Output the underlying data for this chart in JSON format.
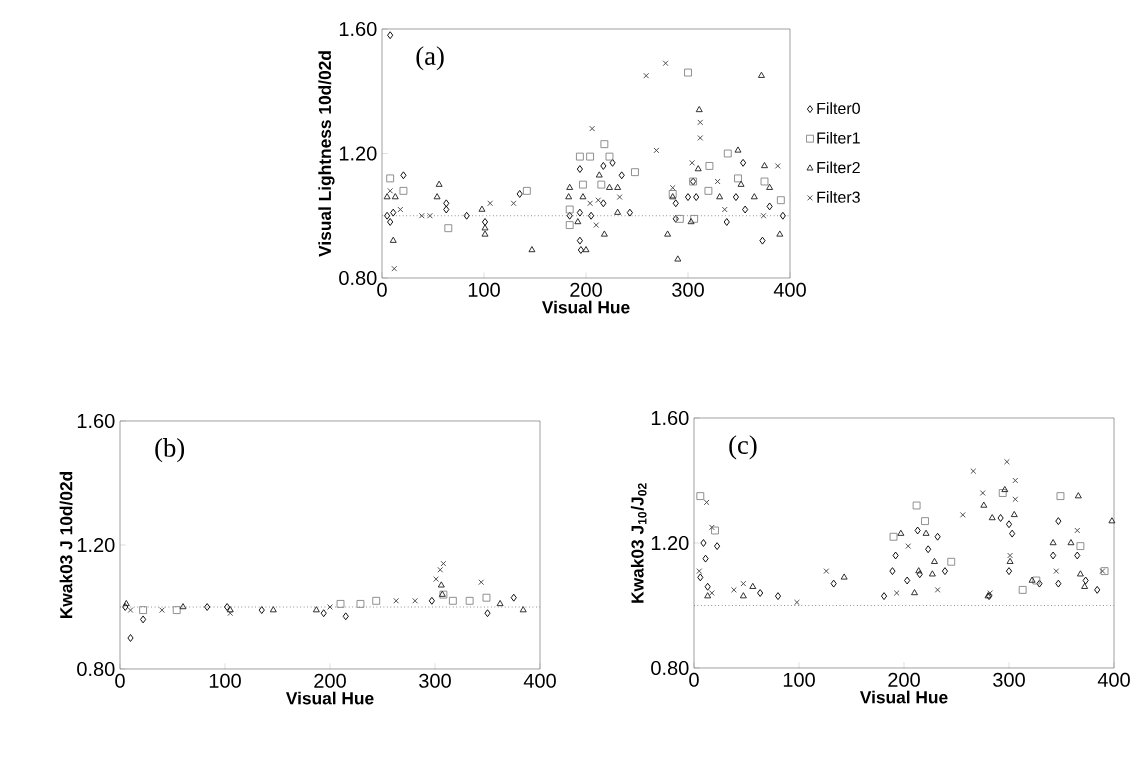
{
  "chart_data": [
    {
      "type": "scatter",
      "xlabel": "Visual Hue",
      "ylabel": "Visual Lightness 10d/02d",
      "annotations": [
        "(a)"
      ],
      "xlim": [
        0,
        400
      ],
      "ylim": [
        0.8,
        1.6
      ],
      "xticks": [
        0,
        100,
        200,
        300,
        400
      ],
      "yticks": [
        {
          "value": 0.8,
          "label": "0.80"
        },
        {
          "value": 1.2,
          "label": "1.20"
        },
        {
          "value": 1.6,
          "label": "1.60"
        }
      ],
      "legend": "right",
      "ref_lines": [
        {
          "axis": "y",
          "value": 1.0,
          "line_style": "dotted",
          "color": "#555555"
        }
      ],
      "series": [
        {
          "name": "Filter0",
          "color": "#000000",
          "marker": "diamond",
          "x": [
            8,
            21,
            5,
            8,
            11,
            63,
            63,
            83,
            101,
            135,
            194,
            217,
            226,
            235,
            217,
            184,
            194,
            205,
            194,
            195,
            243,
            288,
            288,
            300,
            308,
            354,
            347,
            356,
            338,
            373,
            380,
            393,
            305
          ],
          "values": [
            1.58,
            1.13,
            1.0,
            0.98,
            1.01,
            1.04,
            1.02,
            1.0,
            0.98,
            1.07,
            1.15,
            1.16,
            1.17,
            1.13,
            1.04,
            1.0,
            1.01,
            1.0,
            0.92,
            0.89,
            1.01,
            1.04,
            0.99,
            1.06,
            1.06,
            1.17,
            1.06,
            1.02,
            0.98,
            0.92,
            1.03,
            1.0,
            1.11
          ]
        },
        {
          "name": "Filter1",
          "color": "#888888",
          "marker": "square",
          "x": [
            8,
            21,
            65,
            142,
            194,
            204,
            218,
            223,
            248,
            197,
            215,
            184,
            184,
            300,
            321,
            320,
            305,
            339,
            349,
            375,
            391,
            292,
            306,
            285
          ],
          "values": [
            1.12,
            1.08,
            0.96,
            1.08,
            1.19,
            1.19,
            1.23,
            1.19,
            1.14,
            1.1,
            1.1,
            1.02,
            0.97,
            1.46,
            1.16,
            1.08,
            1.11,
            1.2,
            1.12,
            1.11,
            1.05,
            0.99,
            0.99,
            1.07
          ]
        },
        {
          "name": "Filter2",
          "color": "#222222",
          "marker": "triangle",
          "x": [
            5,
            13,
            11,
            56,
            54,
            98,
            101,
            101,
            147,
            184,
            183,
            192,
            200,
            213,
            197,
            223,
            231,
            231,
            218,
            280,
            290,
            310,
            311,
            303,
            331,
            349,
            352,
            365,
            372,
            375,
            380,
            390,
            285
          ],
          "values": [
            1.06,
            1.06,
            0.92,
            1.1,
            1.06,
            1.02,
            0.94,
            0.96,
            0.89,
            1.09,
            1.06,
            0.98,
            0.89,
            1.13,
            1.06,
            1.09,
            1.09,
            1.01,
            0.94,
            0.94,
            0.86,
            1.15,
            1.34,
            0.98,
            1.06,
            1.21,
            1.1,
            1.06,
            1.45,
            1.16,
            1.09,
            0.94,
            1.06
          ]
        },
        {
          "name": "Filter3",
          "color": "#444444",
          "marker": "cross",
          "x": [
            8,
            12,
            18,
            39,
            47,
            106,
            129,
            206,
            278,
            312,
            312,
            210,
            204,
            212,
            233,
            329,
            285,
            374,
            388,
            259,
            269,
            304,
            336
          ],
          "values": [
            1.08,
            0.83,
            1.02,
            1.0,
            1.0,
            1.04,
            1.04,
            1.28,
            1.49,
            1.25,
            1.3,
            0.97,
            1.04,
            1.05,
            1.06,
            1.11,
            1.09,
            1.0,
            1.16,
            1.45,
            1.21,
            1.17,
            1.02
          ]
        }
      ]
    },
    {
      "type": "scatter",
      "xlabel": "Visual Hue",
      "ylabel": "Kwak03 J 10d/02d",
      "annotations": [
        "(b)"
      ],
      "xlim": [
        0,
        400
      ],
      "ylim": [
        0.8,
        1.6
      ],
      "xticks": [
        0,
        100,
        200,
        300,
        400
      ],
      "yticks": [
        {
          "value": 0.8,
          "label": "0.80"
        },
        {
          "value": 1.2,
          "label": "1.20"
        },
        {
          "value": 1.6,
          "label": "1.60"
        }
      ],
      "ref_lines": [
        {
          "axis": "y",
          "value": 1.0,
          "line_style": "dotted",
          "color": "#555555"
        }
      ],
      "series": [
        {
          "color": "#000000",
          "marker": "diamond",
          "x": [
            10,
            22,
            83,
            194,
            215,
            297,
            350,
            135,
            102,
            5,
            375
          ],
          "values": [
            0.9,
            0.96,
            1.0,
            0.98,
            0.97,
            1.02,
            0.98,
            0.99,
            1.0,
            1.0,
            1.03
          ]
        },
        {
          "color": "#888888",
          "marker": "square",
          "x": [
            22,
            244,
            317,
            333,
            229,
            210,
            308,
            54,
            349
          ],
          "values": [
            0.99,
            1.02,
            1.02,
            1.02,
            1.01,
            1.01,
            1.04,
            0.99,
            1.03
          ]
        },
        {
          "color": "#222222",
          "marker": "triangle",
          "x": [
            60,
            146,
            306,
            362,
            384,
            105,
            187,
            307,
            6
          ],
          "values": [
            1.0,
            0.99,
            1.07,
            1.01,
            0.99,
            0.99,
            0.99,
            1.04,
            1.01
          ]
        },
        {
          "color": "#444444",
          "marker": "cross",
          "x": [
            40,
            344,
            305,
            263,
            281,
            105,
            301,
            308,
            10,
            200
          ],
          "values": [
            0.99,
            1.08,
            1.12,
            1.02,
            1.02,
            0.98,
            1.09,
            1.14,
            0.99,
            1.0
          ]
        }
      ]
    },
    {
      "type": "scatter",
      "xlabel": "Visual Hue",
      "ylabel": "Kwak03 J$_{10}$/J$_{02}$",
      "annotations": [
        "(c)"
      ],
      "xlim": [
        0,
        400
      ],
      "ylim": [
        0.8,
        1.6
      ],
      "xticks": [
        0,
        100,
        200,
        300,
        400
      ],
      "yticks": [
        {
          "value": 0.8,
          "label": "0.80"
        },
        {
          "value": 1.2,
          "label": "1.20"
        },
        {
          "value": 1.6,
          "label": "1.60"
        }
      ],
      "ref_lines": [
        {
          "axis": "y",
          "value": 1.0,
          "line_style": "dotted",
          "color": "#555555"
        }
      ],
      "series": [
        {
          "color": "#000000",
          "marker": "diamond",
          "x": [
            9,
            22,
            11,
            6,
            13,
            80,
            133,
            189,
            192,
            213,
            223,
            232,
            239,
            203,
            215,
            292,
            300,
            303,
            300,
            347,
            347,
            365,
            373,
            384,
            181,
            281,
            329,
            342,
            63
          ],
          "values": [
            1.2,
            1.19,
            1.15,
            1.09,
            1.06,
            1.03,
            1.07,
            1.11,
            1.16,
            1.24,
            1.18,
            1.22,
            1.11,
            1.08,
            1.1,
            1.28,
            1.26,
            1.23,
            1.11,
            1.27,
            1.07,
            1.16,
            1.08,
            1.05,
            1.03,
            1.03,
            1.07,
            1.16,
            1.04
          ]
        },
        {
          "color": "#888888",
          "marker": "square",
          "x": [
            6,
            20,
            212,
            220,
            190,
            245,
            313,
            349,
            368,
            391,
            326,
            294
          ],
          "values": [
            1.35,
            1.24,
            1.32,
            1.27,
            1.22,
            1.14,
            1.05,
            1.35,
            1.19,
            1.11,
            1.08,
            1.36
          ]
        },
        {
          "color": "#222222",
          "marker": "triangle",
          "x": [
            13,
            47,
            56,
            143,
            197,
            221,
            214,
            210,
            227,
            229,
            276,
            284,
            296,
            305,
            301,
            342,
            366,
            359,
            368,
            372,
            398,
            322,
            280
          ],
          "values": [
            1.03,
            1.03,
            1.06,
            1.09,
            1.23,
            1.23,
            1.11,
            1.04,
            1.1,
            1.14,
            1.32,
            1.28,
            1.37,
            1.29,
            1.14,
            1.2,
            1.35,
            1.2,
            1.1,
            1.06,
            1.27,
            1.08,
            1.03
          ]
        },
        {
          "color": "#444444",
          "marker": "cross",
          "x": [
            12,
            17,
            5,
            17,
            38,
            47,
            126,
            98,
            193,
            204,
            232,
            256,
            275,
            298,
            306,
            282,
            266,
            301,
            345,
            365,
            389,
            306
          ],
          "values": [
            1.33,
            1.25,
            1.11,
            1.04,
            1.05,
            1.07,
            1.11,
            1.01,
            1.04,
            1.19,
            1.05,
            1.29,
            1.36,
            1.46,
            1.4,
            1.04,
            1.43,
            1.16,
            1.11,
            1.24,
            1.11,
            1.34
          ]
        }
      ]
    }
  ]
}
